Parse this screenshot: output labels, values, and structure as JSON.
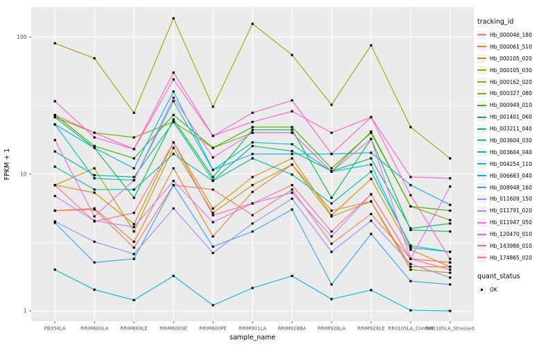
{
  "figure": {
    "xlabel": "sample_name",
    "ylabel": "FPKM + 1"
  },
  "legend": {
    "tracking_title": "tracking_id",
    "quant_title": "quant_status",
    "quant_items": [
      {
        "label": "OK",
        "marker": "black-square"
      }
    ]
  },
  "chart_data": {
    "type": "line",
    "title": "",
    "xlabel": "sample_name",
    "ylabel": "FPKM + 1",
    "x_categories": [
      "PB350LA",
      "RRIM600LA",
      "RRIM600LE",
      "RRIM600SE",
      "RRIM600PE",
      "RRIM901LA",
      "RRIM928BA",
      "RRIM928LA",
      "RRIM928LE",
      "RRII105LA_Control",
      "RRII105LA_Stressed"
    ],
    "y_scale": "log10",
    "y_ticks": [
      1,
      10,
      100
    ],
    "y_minor_ticks": [
      3.162,
      31.62
    ],
    "ylim": [
      0.84,
      166
    ],
    "grid": true,
    "legend_position": "right",
    "panel_bg": "#EBEBEB",
    "grid_color": "#FFFFFF",
    "tick_label_color": "#4D4D4D",
    "point_marker": {
      "shape": "square",
      "color": "#000000",
      "size": 3.2
    },
    "series": [
      {
        "name": "Hb_000046_180",
        "color": "#F8766D",
        "values": [
          5.4,
          5.5,
          2.9,
          8.3,
          7.7,
          5.0,
          7.7,
          3.1,
          5.1,
          2.4,
          2.0
        ]
      },
      {
        "name": "Hb_000061_510",
        "color": "#EA8331",
        "values": [
          5.4,
          5.6,
          3.2,
          11,
          3.5,
          7.4,
          11.7,
          5.4,
          6.3,
          2.1,
          2.1
        ]
      },
      {
        "name": "Hb_000105_020",
        "color": "#D89000",
        "values": [
          8.3,
          7.3,
          4.3,
          17,
          5.6,
          9.5,
          13,
          5.0,
          9.2,
          2.8,
          2.1
        ]
      },
      {
        "name": "Hb_000105_030",
        "color": "#C09B00",
        "values": [
          8.3,
          11,
          3.8,
          15.5,
          5.2,
          8.3,
          11.7,
          4.9,
          6.3,
          2.0,
          1.9
        ]
      },
      {
        "name": "Hb_000162_020",
        "color": "#A3A500",
        "values": [
          90,
          70,
          28,
          137,
          31,
          125,
          74,
          32,
          87,
          22,
          13
        ]
      },
      {
        "name": "Hb_000327_080",
        "color": "#7CAE00",
        "values": [
          26,
          20,
          18.5,
          24,
          15.5,
          20,
          20,
          10.4,
          20.4,
          5.8,
          4.6
        ]
      },
      {
        "name": "Hb_000949_010",
        "color": "#39B600",
        "values": [
          27,
          16,
          13,
          27,
          15.5,
          22,
          22,
          11,
          20,
          5.8,
          5.4
        ]
      },
      {
        "name": "Hb_001401_060",
        "color": "#00BB4E",
        "values": [
          26,
          15.5,
          6.7,
          25,
          9.5,
          21,
          21,
          6.7,
          18,
          3.9,
          3.8
        ]
      },
      {
        "name": "Hb_003211_040",
        "color": "#00BF7D",
        "values": [
          14.6,
          9.8,
          9.5,
          24,
          9.0,
          16,
          14.7,
          10.5,
          13,
          4.0,
          4.35
        ]
      },
      {
        "name": "Hb_003604_030",
        "color": "#00C1A3",
        "values": [
          11.3,
          7.7,
          7.7,
          14,
          8.9,
          13,
          9.9,
          6.1,
          10.4,
          3.0,
          2.7
        ]
      },
      {
        "name": "Hb_003604_040",
        "color": "#00BFC4",
        "values": [
          23,
          9.3,
          9.0,
          34,
          10.7,
          17,
          16.5,
          10.4,
          11.7,
          2.9,
          2.7
        ]
      },
      {
        "name": "Hb_004254_110",
        "color": "#00BAE0",
        "values": [
          2.0,
          1.43,
          1.2,
          1.8,
          1.1,
          1.47,
          1.8,
          1.22,
          1.42,
          1.01,
          1.0
        ]
      },
      {
        "name": "Hb_006663_040",
        "color": "#00B0F6",
        "values": [
          23,
          15.5,
          11,
          40,
          10.7,
          14,
          14,
          14,
          14.3,
          8.3,
          5.95
        ]
      },
      {
        "name": "Hb_008948_160",
        "color": "#35A2FF",
        "values": [
          4.4,
          2.26,
          2.4,
          8.3,
          2.95,
          3.8,
          5.5,
          1.56,
          3.65,
          1.65,
          1.56
        ]
      },
      {
        "name": "Hb_011609_150",
        "color": "#9590FF",
        "values": [
          4.5,
          3.2,
          2.6,
          5.6,
          2.65,
          4.35,
          6.6,
          2.7,
          4.55,
          2.2,
          1.75
        ]
      },
      {
        "name": "Hb_011791_020",
        "color": "#C77CFF",
        "values": [
          6.9,
          4.55,
          4.1,
          8.9,
          4.45,
          6.1,
          7.3,
          3.5,
          7.1,
          2.4,
          2.26
        ]
      },
      {
        "name": "Hb_011947_050",
        "color": "#E76BF3",
        "values": [
          17.7,
          4.9,
          9.0,
          36,
          13.2,
          20,
          20,
          10.4,
          18,
          2.4,
          8.1
        ]
      },
      {
        "name": "Hb_120470_010",
        "color": "#FA62DB",
        "values": [
          34,
          18.5,
          15.2,
          49,
          19,
          24,
          28.7,
          20,
          26,
          9.5,
          9.3
        ]
      },
      {
        "name": "Hb_143986_010",
        "color": "#FF62BC",
        "values": [
          27,
          20,
          15.2,
          55,
          19,
          28,
          34.5,
          14,
          26,
          7.0,
          2.4
        ]
      },
      {
        "name": "Hb_174865_020",
        "color": "#FF6A98",
        "values": [
          8.3,
          4.5,
          5.2,
          17,
          5.0,
          6.1,
          8.3,
          3.8,
          7.1,
          2.4,
          2.26
        ]
      }
    ]
  }
}
